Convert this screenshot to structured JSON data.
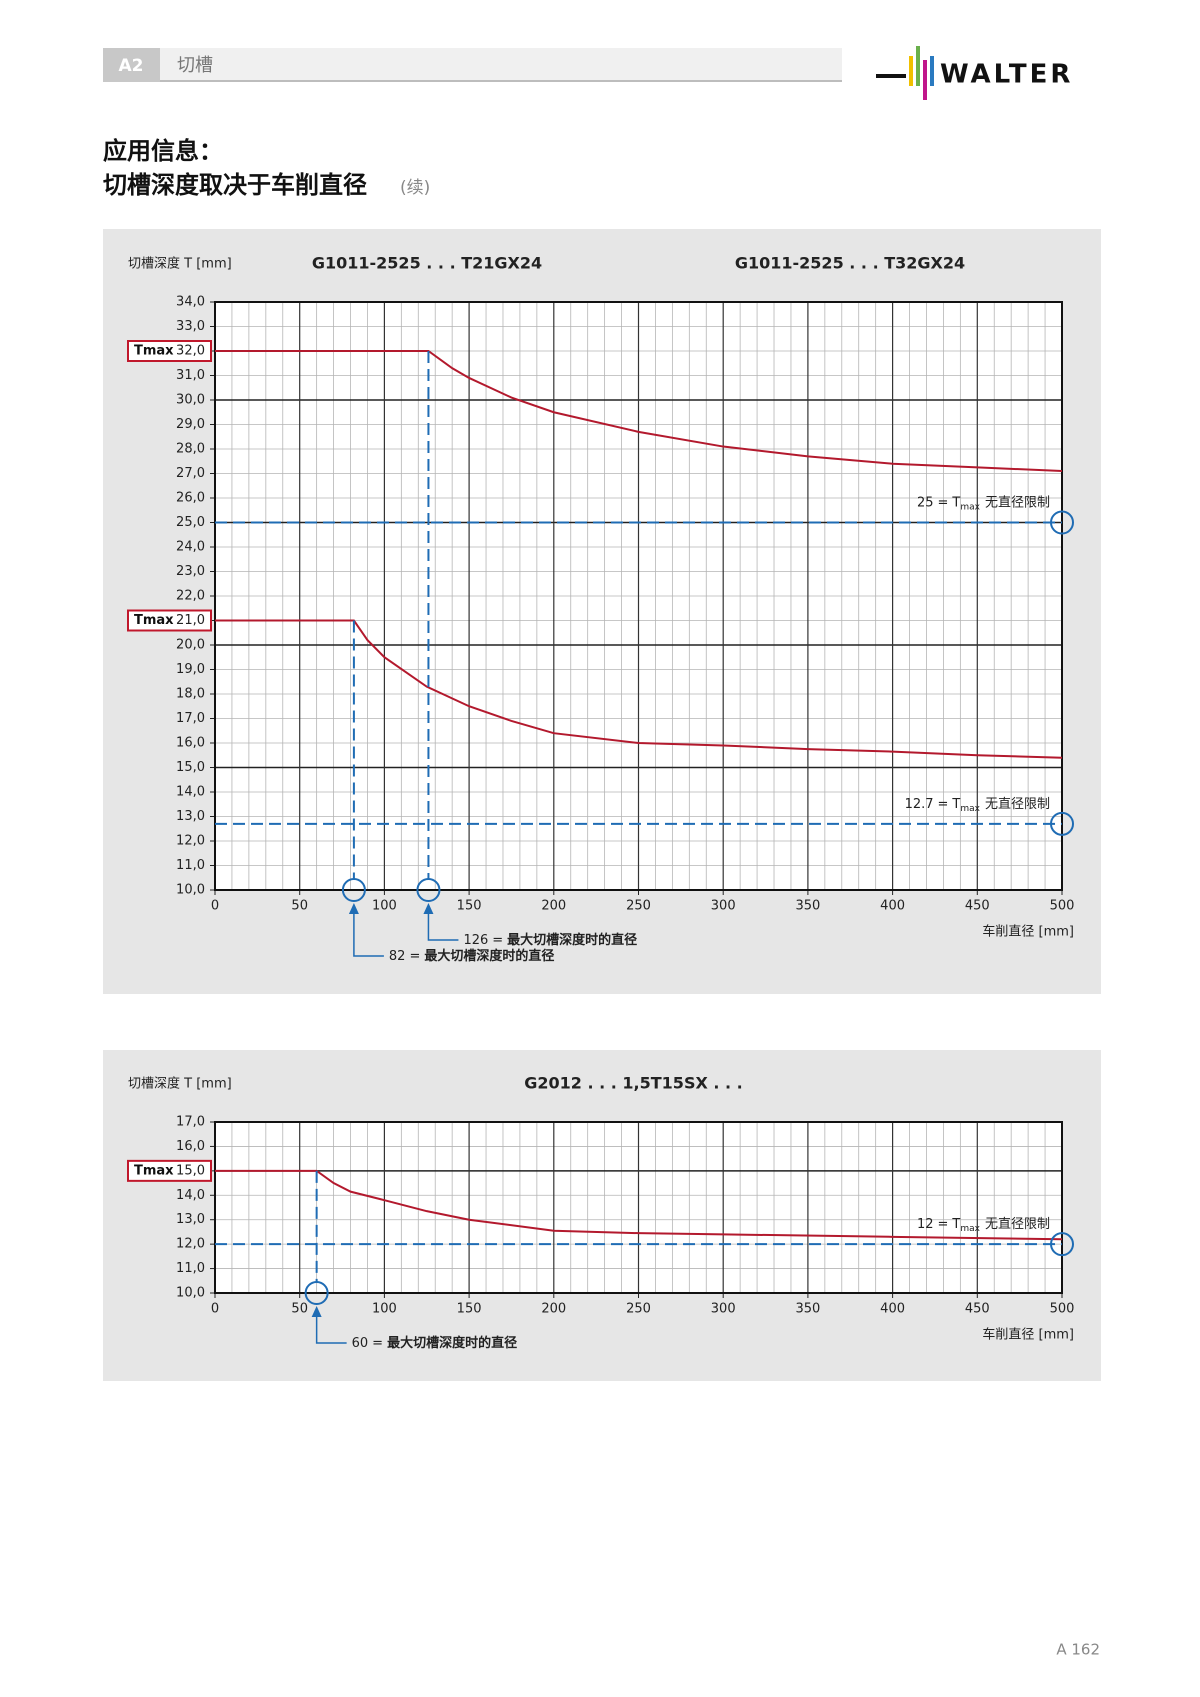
{
  "header": {
    "section": "A2",
    "chapter": "切槽",
    "logo": "WALTER"
  },
  "title": {
    "line1": "应用信息：",
    "line2": "切槽深度取决于车削直径",
    "note": "(续)"
  },
  "page_number": "A 162",
  "chart_data": [
    {
      "type": "line",
      "y_label": "切槽深度 T [mm]",
      "x_label": "车削直径 [mm]",
      "grid": true,
      "xlim": [
        0,
        500
      ],
      "xticks": [
        0,
        50,
        100,
        150,
        200,
        250,
        300,
        350,
        400,
        450,
        500
      ],
      "ylim": [
        10,
        34
      ],
      "yticks": [
        {
          "value": 10,
          "label": "10,0"
        },
        {
          "value": 11,
          "label": "11,0"
        },
        {
          "value": 12,
          "label": "12,0"
        },
        {
          "value": 13,
          "label": "13,0"
        },
        {
          "value": 14,
          "label": "14,0"
        },
        {
          "value": 15,
          "label": "15,0"
        },
        {
          "value": 16,
          "label": "16,0"
        },
        {
          "value": 17,
          "label": "17,0"
        },
        {
          "value": 18,
          "label": "18,0"
        },
        {
          "value": 19,
          "label": "19,0"
        },
        {
          "value": 20,
          "label": "20,0"
        },
        {
          "value": 21,
          "label": "21,0"
        },
        {
          "value": 22,
          "label": "22,0"
        },
        {
          "value": 23,
          "label": "23,0"
        },
        {
          "value": 24,
          "label": "24,0"
        },
        {
          "value": 25,
          "label": "25,0"
        },
        {
          "value": 26,
          "label": "26,0"
        },
        {
          "value": 27,
          "label": "27,0"
        },
        {
          "value": 28,
          "label": "28,0"
        },
        {
          "value": 29,
          "label": "29,0"
        },
        {
          "value": 30,
          "label": "30,0"
        },
        {
          "value": 31,
          "label": "31,0"
        },
        {
          "value": 32,
          "label": "32,0"
        },
        {
          "value": 33,
          "label": "33,0"
        },
        {
          "value": 34,
          "label": "34,0"
        }
      ],
      "series": [
        {
          "name": "G1011-2525 . . . T21GX24",
          "color": "#b3192d",
          "x": [
            0,
            82,
            90,
            100,
            125,
            150,
            175,
            200,
            250,
            300,
            350,
            400,
            450,
            500
          ],
          "values": [
            21,
            21,
            20.2,
            19.5,
            18.3,
            17.5,
            16.9,
            16.4,
            16.0,
            15.9,
            15.75,
            15.65,
            15.5,
            15.4
          ]
        },
        {
          "name": "G1011-2525 . . . T32GX24",
          "color": "#b3192d",
          "x": [
            0,
            126,
            140,
            150,
            175,
            200,
            250,
            300,
            350,
            400,
            450,
            500
          ],
          "values": [
            32,
            32,
            31.3,
            30.9,
            30.1,
            29.5,
            28.7,
            28.1,
            27.7,
            27.4,
            27.25,
            27.1
          ]
        }
      ],
      "tmax_markers": [
        {
          "value": 32,
          "text": "Tmax"
        },
        {
          "value": 21,
          "text": "Tmax"
        }
      ],
      "horizontal_refs": [
        {
          "value": 25,
          "eq": "=",
          "sym": "T",
          "sub": "max",
          "text": "无直径限制"
        },
        {
          "value": 12.7,
          "eq": "=",
          "sym": "T",
          "sub": "max",
          "text": "无直径限制"
        }
      ],
      "vertical_refs": [
        {
          "value": 82,
          "eq": "=",
          "text": "最大切槽深度时的直径"
        },
        {
          "value": 126,
          "eq": "=",
          "text": "最大切槽深度时的直径"
        }
      ],
      "ref_color": "#1f6cb4"
    },
    {
      "type": "line",
      "y_label": "切槽深度 T [mm]",
      "x_label": "车削直径 [mm]",
      "grid": true,
      "xlim": [
        0,
        500
      ],
      "xticks": [
        0,
        50,
        100,
        150,
        200,
        250,
        300,
        350,
        400,
        450,
        500
      ],
      "ylim": [
        10,
        17
      ],
      "yticks": [
        {
          "value": 10,
          "label": "10,0"
        },
        {
          "value": 11,
          "label": "11,0"
        },
        {
          "value": 12,
          "label": "12,0"
        },
        {
          "value": 13,
          "label": "13,0"
        },
        {
          "value": 14,
          "label": "14,0"
        },
        {
          "value": 15,
          "label": "15,0"
        },
        {
          "value": 16,
          "label": "16,0"
        },
        {
          "value": 17,
          "label": "17,0"
        }
      ],
      "series": [
        {
          "name": "G2012 . . . 1,5T15SX . . .",
          "color": "#b3192d",
          "x": [
            0,
            60,
            70,
            80,
            100,
            125,
            150,
            200,
            250,
            300,
            400,
            500
          ],
          "values": [
            15,
            15,
            14.5,
            14.15,
            13.8,
            13.35,
            13.0,
            12.55,
            12.45,
            12.4,
            12.3,
            12.2
          ]
        }
      ],
      "tmax_markers": [
        {
          "value": 15,
          "text": "Tmax"
        }
      ],
      "horizontal_refs": [
        {
          "value": 12,
          "eq": "=",
          "sym": "T",
          "sub": "max",
          "text": "无直径限制"
        }
      ],
      "vertical_refs": [
        {
          "value": 60,
          "eq": "=",
          "text": "最大切槽深度时的直径"
        }
      ],
      "ref_color": "#1f6cb4"
    }
  ]
}
